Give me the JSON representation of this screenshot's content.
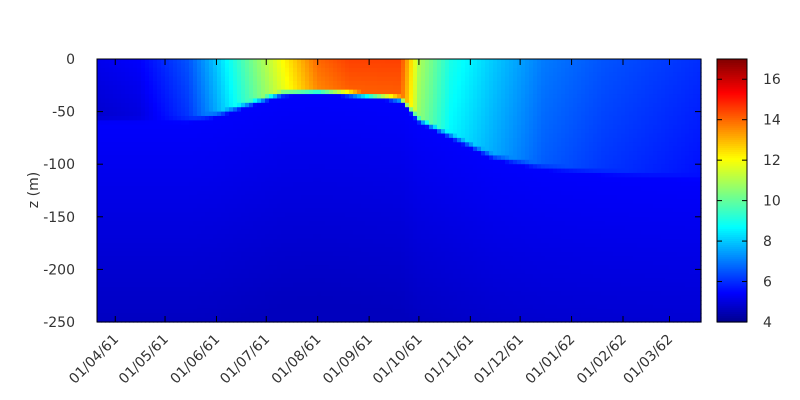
{
  "chart_data": {
    "type": "heatmap",
    "title": "",
    "xlabel": "",
    "ylabel": "z (m)",
    "x_tick_labels": [
      "01/04/61",
      "01/05/61",
      "01/06/61",
      "01/07/61",
      "01/08/61",
      "01/09/61",
      "01/10/61",
      "01/11/61",
      "01/12/61",
      "01/01/62",
      "01/02/62",
      "01/03/62"
    ],
    "x_range": [
      "1961-03-21",
      "1962-03-20"
    ],
    "y_ticks": [
      0,
      -50,
      -100,
      -150,
      -200,
      -250
    ],
    "ylim": [
      -250,
      0
    ],
    "colorbar": {
      "ticks": [
        4,
        6,
        8,
        10,
        12,
        14,
        16
      ],
      "range": [
        4,
        17
      ],
      "colormap": "jet",
      "colormap_stops": [
        "#00008f",
        "#0000ff",
        "#00ffff",
        "#ffff00",
        "#ff0000",
        "#800000"
      ]
    },
    "field_description": "temperature vs depth and date",
    "surface_profile": [
      {
        "date": "1961-03-21",
        "surface_value": 5.2,
        "layer_depth": -55
      },
      {
        "date": "1961-04-15",
        "surface_value": 5.4,
        "layer_depth": -55
      },
      {
        "date": "1961-05-15",
        "surface_value": 6.5,
        "layer_depth": -55
      },
      {
        "date": "1961-06-01",
        "surface_value": 8.0,
        "layer_depth": -50
      },
      {
        "date": "1961-06-20",
        "surface_value": 10.0,
        "layer_depth": -40
      },
      {
        "date": "1961-07-10",
        "surface_value": 12.0,
        "layer_depth": -30
      },
      {
        "date": "1961-08-01",
        "surface_value": 14.0,
        "layer_depth": -28
      },
      {
        "date": "1961-08-20",
        "surface_value": 14.5,
        "layer_depth": -30
      },
      {
        "date": "1961-09-20",
        "surface_value": 14.5,
        "layer_depth": -35
      },
      {
        "date": "1961-10-01",
        "surface_value": 11.0,
        "layer_depth": -55
      },
      {
        "date": "1961-10-20",
        "surface_value": 9.0,
        "layer_depth": -70
      },
      {
        "date": "1961-11-15",
        "surface_value": 8.0,
        "layer_depth": -90
      },
      {
        "date": "1961-12-15",
        "surface_value": 7.0,
        "layer_depth": -100
      },
      {
        "date": "1962-01-20",
        "surface_value": 6.5,
        "layer_depth": -105
      },
      {
        "date": "1962-03-20",
        "surface_value": 6.0,
        "layer_depth": -110
      }
    ],
    "deep_value": 4.6,
    "grid": false,
    "legend": "colorbar-right"
  }
}
